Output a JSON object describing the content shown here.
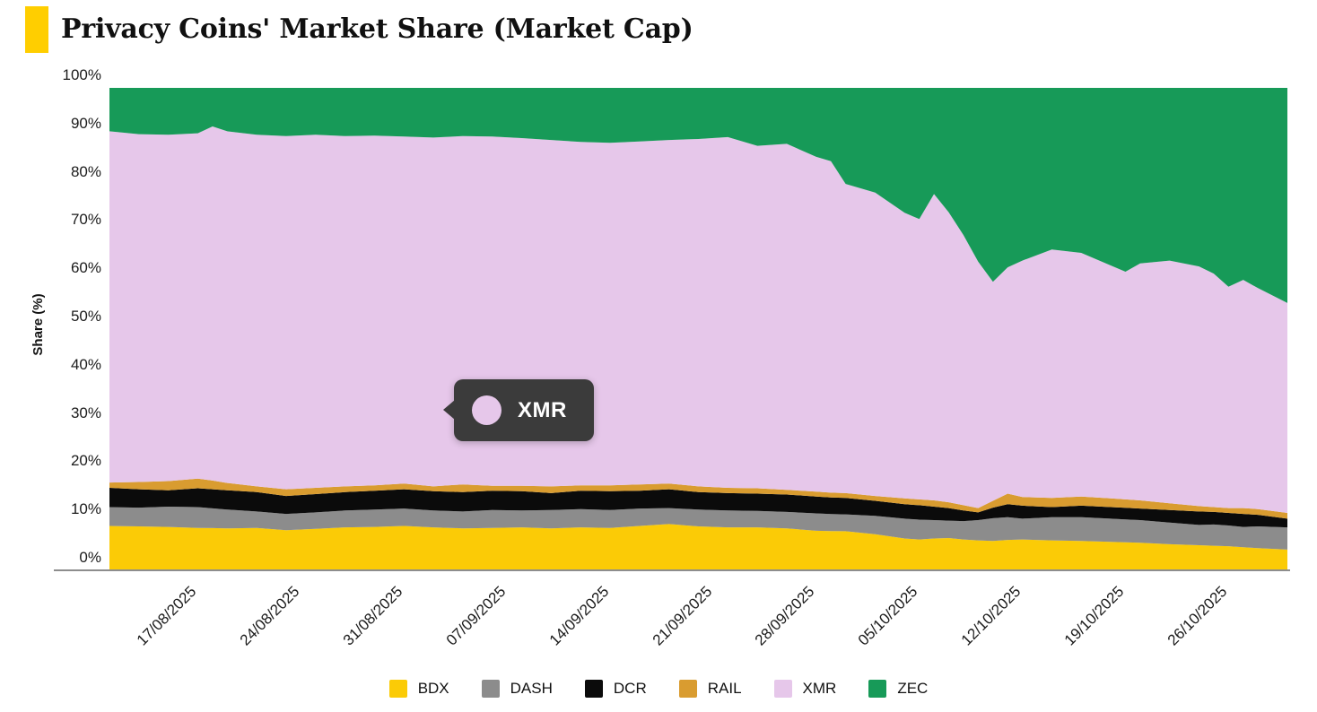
{
  "header": {
    "title": "Privacy Coins' Market Share (Market Cap)",
    "accent_color": "#FFCE00"
  },
  "tooltip": {
    "label": "XMR",
    "series": "XMR"
  },
  "axis": {
    "ylabel": "Share (%)",
    "y_ticks": [
      "0%",
      "10%",
      "20%",
      "30%",
      "40%",
      "50%",
      "60%",
      "70%",
      "80%",
      "90%",
      "100%"
    ],
    "line_color": "#8d8d8d"
  },
  "chart_data": {
    "type": "area",
    "stacked": true,
    "stack_total": 100,
    "title": "Privacy Coins' Market Share (Market Cap)",
    "xlabel": "",
    "ylabel": "Share (%)",
    "ylim": [
      0,
      100
    ],
    "grid": false,
    "legend_position": "bottom",
    "x_range_days": [
      0,
      80
    ],
    "x_start_date": "12/08/2025",
    "x_end_date": "31/10/2025",
    "x_tick_days": [
      5,
      12,
      19,
      26,
      33,
      40,
      47,
      54,
      61,
      68,
      75
    ],
    "x_tick_labels": [
      "17/08/2025",
      "24/08/2025",
      "31/08/2025",
      "07/09/2025",
      "14/09/2025",
      "21/09/2025",
      "28/09/2025",
      "05/10/2025",
      "12/10/2025",
      "19/10/2025",
      "26/10/2025"
    ],
    "x_days": [
      0,
      2,
      4,
      6,
      7,
      8,
      10,
      12,
      14,
      16,
      18,
      20,
      22,
      24,
      26,
      28,
      30,
      32,
      34,
      36,
      38,
      40,
      42,
      44,
      46,
      48,
      49,
      50,
      52,
      54,
      55,
      56,
      57,
      58,
      59,
      60,
      61,
      62,
      64,
      66,
      68,
      69,
      70,
      72,
      74,
      75,
      76,
      77,
      78,
      80
    ],
    "x_dates": [
      "12/08/2025",
      "14/08/2025",
      "16/08/2025",
      "18/08/2025",
      "19/08/2025",
      "20/08/2025",
      "22/08/2025",
      "24/08/2025",
      "26/08/2025",
      "28/08/2025",
      "30/08/2025",
      "01/09/2025",
      "03/09/2025",
      "05/09/2025",
      "07/09/2025",
      "09/09/2025",
      "11/09/2025",
      "13/09/2025",
      "15/09/2025",
      "17/09/2025",
      "19/09/2025",
      "21/09/2025",
      "23/09/2025",
      "25/09/2025",
      "27/09/2025",
      "29/09/2025",
      "30/09/2025",
      "01/10/2025",
      "03/10/2025",
      "05/10/2025",
      "06/10/2025",
      "07/10/2025",
      "08/10/2025",
      "09/10/2025",
      "10/10/2025",
      "11/10/2025",
      "12/10/2025",
      "13/10/2025",
      "15/10/2025",
      "17/10/2025",
      "19/10/2025",
      "20/10/2025",
      "21/10/2025",
      "23/10/2025",
      "25/10/2025",
      "26/10/2025",
      "27/10/2025",
      "28/10/2025",
      "29/10/2025",
      "31/10/2025"
    ],
    "series": [
      {
        "name": "BDX",
        "color": "#FBCB06",
        "values": [
          9.2,
          9.1,
          9.0,
          8.8,
          8.75,
          8.7,
          8.8,
          8.3,
          8.6,
          8.9,
          9.0,
          9.2,
          8.9,
          8.7,
          8.8,
          8.9,
          8.7,
          8.9,
          8.8,
          9.2,
          9.6,
          9.1,
          8.9,
          8.9,
          8.7,
          8.2,
          8.15,
          8.1,
          7.5,
          6.6,
          6.4,
          6.6,
          6.7,
          6.4,
          6.2,
          6.1,
          6.3,
          6.4,
          6.2,
          6.1,
          5.9,
          5.8,
          5.7,
          5.4,
          5.2,
          5.1,
          5.0,
          4.8,
          4.6,
          4.3
        ]
      },
      {
        "name": "DASH",
        "color": "#8C8C8C",
        "values": [
          3.9,
          3.9,
          4.2,
          4.3,
          4.1,
          3.9,
          3.4,
          3.4,
          3.4,
          3.5,
          3.6,
          3.6,
          3.5,
          3.5,
          3.7,
          3.5,
          3.8,
          3.8,
          3.7,
          3.6,
          3.3,
          3.5,
          3.5,
          3.4,
          3.4,
          3.6,
          3.5,
          3.5,
          3.8,
          4.1,
          4.1,
          3.8,
          3.6,
          3.8,
          4.2,
          4.7,
          4.7,
          4.3,
          4.8,
          4.9,
          4.8,
          4.75,
          4.7,
          4.5,
          4.2,
          4.4,
          4.3,
          4.2,
          4.5,
          4.6
        ]
      },
      {
        "name": "DCR",
        "color": "#0B0B0B",
        "values": [
          4.0,
          3.8,
          3.4,
          3.9,
          3.95,
          4.0,
          4.0,
          3.7,
          3.8,
          3.8,
          3.9,
          4.0,
          4.0,
          4.0,
          4.0,
          4.0,
          3.5,
          3.8,
          3.9,
          3.7,
          3.9,
          3.6,
          3.6,
          3.6,
          3.6,
          3.5,
          3.45,
          3.4,
          3.1,
          3.0,
          3.0,
          2.8,
          2.6,
          2.2,
          1.6,
          2.2,
          2.7,
          2.7,
          2.1,
          2.4,
          2.4,
          2.4,
          2.4,
          2.6,
          2.8,
          2.6,
          2.6,
          2.7,
          2.4,
          1.8
        ]
      },
      {
        "name": "RAIL",
        "color": "#D99C30",
        "values": [
          1.1,
          1.5,
          1.9,
          2.0,
          1.8,
          1.5,
          1.2,
          1.4,
          1.3,
          1.2,
          1.1,
          1.2,
          1.0,
          1.6,
          1.0,
          1.1,
          1.4,
          1.1,
          1.2,
          1.3,
          1.2,
          1.2,
          1.1,
          1.1,
          1.0,
          1.0,
          1.0,
          1.0,
          1.0,
          1.2,
          1.2,
          1.3,
          1.2,
          1.1,
          0.9,
          1.4,
          2.2,
          1.8,
          1.9,
          1.9,
          1.8,
          1.75,
          1.7,
          1.4,
          1.1,
          1.0,
          1.0,
          1.2,
          1.2,
          1.2
        ]
      },
      {
        "name": "XMR",
        "color": "#E6C7EA",
        "values": [
          72.8,
          72.1,
          71.8,
          71.6,
          73.4,
          72.9,
          72.9,
          73.2,
          73.2,
          72.6,
          72.5,
          71.9,
          72.3,
          72.2,
          72.4,
          72.1,
          71.8,
          71.2,
          71.0,
          71.1,
          71.2,
          72.0,
          72.7,
          71.0,
          71.7,
          69.4,
          68.7,
          64.1,
          62.9,
          59.2,
          58.1,
          63.5,
          60.1,
          56.0,
          51.1,
          45.4,
          46.9,
          49.0,
          51.5,
          50.5,
          48.3,
          47.2,
          49.1,
          50.3,
          49.7,
          48.4,
          45.9,
          47.3,
          45.8,
          43.5
        ]
      },
      {
        "name": "ZEC",
        "color": "#179A58",
        "values": [
          9.0,
          9.4,
          9.7,
          9.4,
          8.0,
          9.0,
          9.7,
          10.0,
          9.7,
          10.0,
          9.9,
          10.1,
          10.3,
          10.0,
          10.1,
          10.4,
          10.8,
          11.2,
          11.4,
          11.1,
          10.8,
          10.6,
          10.2,
          12.0,
          11.6,
          14.3,
          15.2,
          19.9,
          21.7,
          25.9,
          27.2,
          22.0,
          25.8,
          30.5,
          36.0,
          40.2,
          37.2,
          35.8,
          33.5,
          34.2,
          36.8,
          38.1,
          36.4,
          35.8,
          37.0,
          38.5,
          41.2,
          39.8,
          41.5,
          44.6
        ]
      }
    ]
  }
}
